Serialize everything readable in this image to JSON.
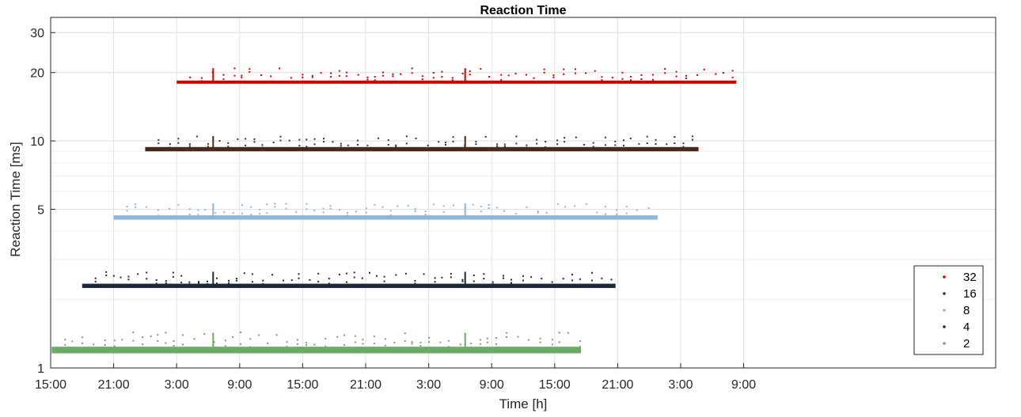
{
  "chart_data": {
    "type": "scatter",
    "title": "Reaction Time",
    "xlabel": "Time [h]",
    "ylabel": "Reaction Time [ms]",
    "yscale": "log",
    "ylim": [
      1,
      35
    ],
    "xlim_hours": [
      15,
      105
    ],
    "x_ticks": [
      {
        "at": 15,
        "label": "15:00"
      },
      {
        "at": 21,
        "label": "21:00"
      },
      {
        "at": 27,
        "label": "3:00"
      },
      {
        "at": 33,
        "label": "9:00"
      },
      {
        "at": 39,
        "label": "15:00"
      },
      {
        "at": 45,
        "label": "21:00"
      },
      {
        "at": 51,
        "label": "3:00"
      },
      {
        "at": 57,
        "label": "9:00"
      },
      {
        "at": 63,
        "label": "15:00"
      },
      {
        "at": 69,
        "label": "21:00"
      },
      {
        "at": 75,
        "label": "3:00"
      },
      {
        "at": 81,
        "label": "9:00"
      }
    ],
    "y_ticks": [
      {
        "at": 1,
        "label": "1"
      },
      {
        "at": 5,
        "label": "5"
      },
      {
        "at": 10,
        "label": "10"
      },
      {
        "at": 20,
        "label": "20"
      },
      {
        "at": 30,
        "label": "30"
      }
    ],
    "grid": true,
    "legend_position": "bottom-right",
    "series": [
      {
        "name": "32",
        "color": "#d40000",
        "x_start": 27.0,
        "x_end": 80.3,
        "baseline": 18.2,
        "band": 0.25,
        "spikes": 20.5
      },
      {
        "name": "16",
        "color": "#4a2a1c",
        "x_start": 24.0,
        "x_end": 76.7,
        "baseline": 9.2,
        "band": 0.2,
        "spikes": 10.3
      },
      {
        "name": "8",
        "color": "#8db3e0",
        "x_start": 21.0,
        "x_end": 72.8,
        "baseline": 4.6,
        "band": 0.1,
        "spikes": 5.2
      },
      {
        "name": "4",
        "color": "#1a2a3c",
        "x_start": 18.0,
        "x_end": 68.8,
        "baseline": 2.3,
        "band": 0.05,
        "spikes": 2.6
      },
      {
        "name": "2",
        "color": "#6aaa64",
        "x_start": 15.1,
        "x_end": 65.5,
        "baseline": 1.2,
        "band": 0.04,
        "spikes": 1.4
      }
    ]
  }
}
